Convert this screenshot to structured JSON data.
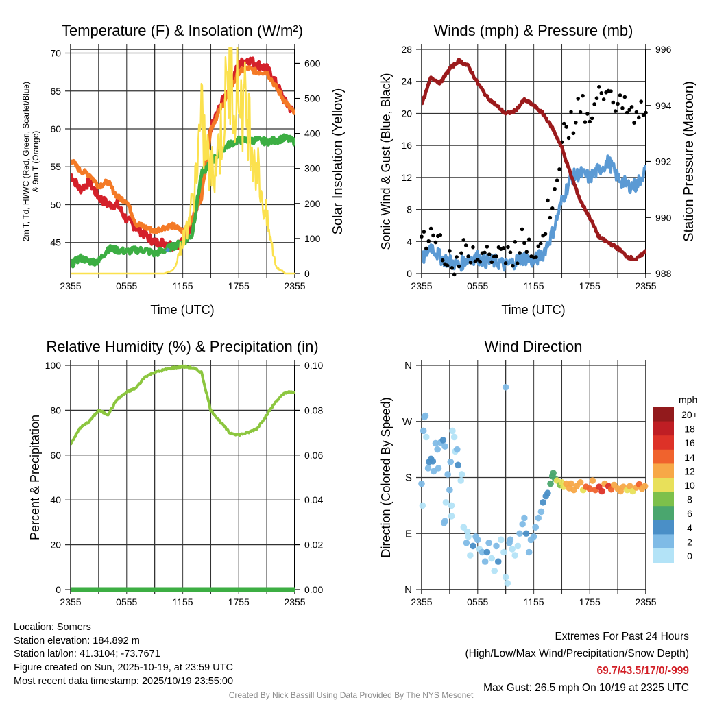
{
  "colors": {
    "temp": "#d4202a",
    "temp9m": "#f47a26",
    "dewpoint": "#3cae43",
    "windchill": "#4a90d0",
    "solar": "#fbe14e",
    "gust": "#000000",
    "wind": "#5b9ad4",
    "pressure": "#9b1a1c",
    "rh": "#8cc63f",
    "precip": "#3cae43"
  },
  "x_tick_labels": [
    "2355",
    "0555",
    "1155",
    "1755",
    "2355"
  ],
  "chart_data": [
    {
      "type": "line",
      "title": "Temperature (F) & Insolation (W/m²)",
      "xlabel": "Time (UTC)",
      "ylabel": [
        "2m T, Td, HI/WC (Red, Green, Scarlet/Blue)",
        "& 9m T (Orange)"
      ],
      "ylabel_right": "Solar Insolation (Yellow)",
      "x_hours_from_start": [
        0,
        1,
        2,
        3,
        4,
        5,
        6,
        7,
        8,
        9,
        10,
        11,
        12,
        13,
        14,
        15,
        16,
        17,
        18,
        19,
        20,
        21,
        22,
        23,
        24
      ],
      "ylim": [
        40.9,
        70.5
      ],
      "yticks": [
        45,
        50,
        55,
        60,
        65,
        70
      ],
      "ylim_right": [
        0,
        640
      ],
      "yticks_right": [
        0,
        100,
        200,
        300,
        400,
        500,
        600
      ],
      "series": [
        {
          "name": "2m T",
          "axis": "left",
          "color_key": "temp",
          "values": [
            54,
            52,
            53,
            51,
            50,
            50,
            48,
            47,
            46,
            45,
            45,
            44.6,
            45,
            47.5,
            52,
            60,
            63,
            65.5,
            68.5,
            69.2,
            68.5,
            68,
            66,
            63.5,
            62
          ]
        },
        {
          "name": "9m T",
          "axis": "left",
          "color_key": "temp9m",
          "values": [
            56,
            54.5,
            54,
            52.5,
            53,
            51,
            50.5,
            47.5,
            47,
            46.5,
            47,
            47.2,
            46.5,
            48,
            51,
            60,
            62.5,
            65,
            67.5,
            68,
            67.5,
            67.5,
            65.5,
            63.5,
            62
          ]
        },
        {
          "name": "Td",
          "axis": "left",
          "color_key": "dewpoint",
          "values": [
            42,
            43,
            42.5,
            42.5,
            44.2,
            44,
            43.8,
            44,
            44,
            43.5,
            44,
            44.5,
            45,
            46,
            54,
            55.5,
            57,
            58,
            58.5,
            58.5,
            58.5,
            58.3,
            58.5,
            58.8,
            58.3
          ]
        },
        {
          "name": "Solar Insolation",
          "axis": "right",
          "color_key": "solar",
          "values": [
            0,
            0,
            0,
            0,
            0,
            0,
            0,
            0,
            0,
            0,
            0,
            10,
            90,
            190,
            430,
            280,
            380,
            560,
            520,
            450,
            300,
            150,
            20,
            0,
            0
          ]
        }
      ],
      "windchill_points": [
        [
          10.3,
          43.8
        ],
        [
          10.5,
          44.2
        ]
      ]
    },
    {
      "type": "line",
      "title": "Winds (mph) & Pressure (mb)",
      "xlabel": "Time (UTC)",
      "ylabel": "Sonic Wind & Gust (Blue, Black)",
      "ylabel_right": "Station Pressure (Maroon)",
      "x_hours_from_start": [
        0,
        1,
        2,
        3,
        4,
        5,
        6,
        7,
        8,
        9,
        10,
        11,
        12,
        13,
        14,
        15,
        16,
        17,
        18,
        19,
        20,
        21,
        22,
        23,
        24
      ],
      "ylim": [
        0,
        28
      ],
      "yticks": [
        0,
        4,
        8,
        12,
        16,
        20,
        24,
        28
      ],
      "ylim_right": [
        988,
        996
      ],
      "yticks_right": [
        988,
        990,
        992,
        994,
        996
      ],
      "series": [
        {
          "name": "Sonic Wind",
          "axis": "left",
          "color_key": "wind",
          "values": [
            1.5,
            3.5,
            2,
            1.5,
            1,
            2,
            2,
            1.5,
            1.5,
            1,
            1.5,
            2,
            1.5,
            2.5,
            5,
            9,
            12,
            12.5,
            12,
            13,
            14,
            12,
            11,
            11,
            13
          ]
        },
        {
          "name": "Gust",
          "axis": "left",
          "style": "dots",
          "color_key": "gust",
          "values": [
            3,
            5,
            4,
            2,
            1.5,
            3,
            3,
            2.5,
            2,
            2,
            3,
            4,
            3.5,
            5,
            10,
            16,
            19,
            21,
            18,
            22,
            24,
            21,
            20,
            19,
            22
          ]
        },
        {
          "name": "Station Pressure",
          "axis": "right",
          "color_key": "pressure",
          "values": [
            994,
            995,
            994.8,
            995.3,
            995.6,
            995.4,
            994.8,
            994.3,
            994,
            993.7,
            993.8,
            994.2,
            994,
            993.7,
            993.2,
            992.5,
            991.5,
            990.6,
            990,
            989.3,
            989.1,
            988.9,
            988.6,
            988.5,
            988.8
          ]
        }
      ]
    },
    {
      "type": "line",
      "title": "Relative Humidity (%) & Precipitation (in)",
      "xlabel": "",
      "ylabel": "Percent & Precipitation",
      "x_hours_from_start": [
        0,
        1,
        2,
        3,
        4,
        5,
        6,
        7,
        8,
        9,
        10,
        11,
        12,
        13,
        14,
        15,
        16,
        17,
        18,
        19,
        20,
        21,
        22,
        23,
        24
      ],
      "ylim": [
        0,
        100
      ],
      "yticks": [
        0,
        20,
        40,
        60,
        80,
        100
      ],
      "ylim_right": [
        0,
        0.1
      ],
      "yticks_right": [
        "0.00",
        "0.02",
        "0.04",
        "0.06",
        "0.08",
        "0.10"
      ],
      "series": [
        {
          "name": "Relative Humidity",
          "axis": "left",
          "color_key": "rh",
          "values": [
            65,
            72,
            75,
            80,
            78,
            85,
            88,
            90,
            95,
            97,
            98,
            99,
            99.5,
            99,
            97,
            80,
            75,
            70,
            69,
            70,
            72,
            78,
            84,
            88,
            88
          ]
        },
        {
          "name": "Precipitation",
          "axis": "right",
          "color_key": "precip",
          "values": [
            0,
            0,
            0,
            0,
            0,
            0,
            0,
            0,
            0,
            0,
            0,
            0,
            0,
            0,
            0,
            0,
            0,
            0,
            0,
            0,
            0,
            0,
            0,
            0,
            0
          ]
        }
      ]
    },
    {
      "type": "scatter",
      "title": "Wind Direction",
      "xlabel": "",
      "ylabel": "Direction (Colored By Speed)",
      "ylim": [
        0,
        360
      ],
      "yticks": [
        0,
        90,
        180,
        270,
        360
      ],
      "ytick_labels": [
        "N",
        "E",
        "S",
        "W",
        "N"
      ],
      "legend": {
        "title": "mph",
        "labels": [
          "20+",
          "18",
          "16",
          "14",
          "12",
          "10",
          "8",
          "6",
          "4",
          "2",
          "0"
        ],
        "colors": [
          "#921a1c",
          "#bf1e24",
          "#dd3228",
          "#f0632d",
          "#f7a847",
          "#e8e05a",
          "#7dc04b",
          "#4aa66e",
          "#4a8fc7",
          "#7fbbe6",
          "#b3e3f7"
        ],
        "placement": "right"
      },
      "points_hour_deg_mph": [
        [
          0,
          170,
          2
        ],
        [
          0.1,
          135,
          1
        ],
        [
          0.2,
          255,
          2
        ],
        [
          0.3,
          277,
          2
        ],
        [
          0.4,
          279,
          2
        ],
        [
          0.5,
          245,
          1
        ],
        [
          0.7,
          195,
          3
        ],
        [
          0.8,
          205,
          4
        ],
        [
          1,
          210,
          4
        ],
        [
          1.2,
          206,
          4
        ],
        [
          1.3,
          190,
          3
        ],
        [
          1.5,
          235,
          2
        ],
        [
          1.7,
          225,
          2
        ],
        [
          1.8,
          195,
          2
        ],
        [
          2,
          236,
          2
        ],
        [
          2.3,
          240,
          4
        ],
        [
          2.8,
          185,
          2
        ],
        [
          3,
          160,
          2
        ],
        [
          3.2,
          135,
          1
        ],
        [
          2.5,
          230,
          2
        ],
        [
          2.6,
          140,
          1
        ],
        [
          2.5,
          110,
          2
        ],
        [
          2.4,
          107,
          2
        ],
        [
          3.1,
          205,
          2
        ],
        [
          3.3,
          255,
          0
        ],
        [
          3.5,
          245,
          0
        ],
        [
          3.6,
          222,
          1
        ],
        [
          3.8,
          225,
          2
        ],
        [
          3.9,
          200,
          4
        ],
        [
          4.2,
          175,
          0
        ],
        [
          4.3,
          185,
          1
        ],
        [
          3.2,
          118,
          1
        ],
        [
          4.5,
          100,
          0
        ],
        [
          4.8,
          75,
          2
        ],
        [
          4.9,
          93,
          0
        ],
        [
          5,
          85,
          0
        ],
        [
          5.2,
          55,
          0
        ],
        [
          5.5,
          70,
          4
        ],
        [
          5.8,
          85,
          2
        ],
        [
          6,
          80,
          3
        ],
        [
          6.2,
          65,
          0
        ],
        [
          6.5,
          60,
          3
        ],
        [
          6.8,
          45,
          3
        ],
        [
          7,
          60,
          4
        ],
        [
          7.2,
          75,
          2
        ],
        [
          7.5,
          50,
          0
        ],
        [
          7.8,
          30,
          0
        ],
        [
          8,
          70,
          3
        ],
        [
          8.2,
          45,
          4
        ],
        [
          8.5,
          80,
          1
        ],
        [
          8.8,
          60,
          0
        ],
        [
          9,
          20,
          0
        ],
        [
          9.2,
          10,
          0
        ],
        [
          9.4,
          75,
          3
        ],
        [
          9,
          325,
          2
        ],
        [
          9.5,
          80,
          3
        ],
        [
          9.7,
          65,
          1
        ],
        [
          10,
          55,
          0
        ],
        [
          10.3,
          70,
          1
        ],
        [
          10.5,
          90,
          3
        ],
        [
          10.8,
          105,
          3
        ],
        [
          11,
          115,
          2
        ],
        [
          11.2,
          90,
          4
        ],
        [
          11.5,
          60,
          3
        ],
        [
          11.7,
          80,
          3
        ],
        [
          12,
          85,
          3
        ],
        [
          12.2,
          100,
          3
        ],
        [
          12.5,
          115,
          2
        ],
        [
          12.8,
          125,
          2
        ],
        [
          13,
          140,
          4
        ],
        [
          13.3,
          150,
          5
        ],
        [
          13.5,
          155,
          4
        ],
        [
          13.8,
          170,
          6
        ],
        [
          14,
          182,
          6
        ],
        [
          14.1,
          187,
          6
        ],
        [
          14.3,
          178,
          7
        ],
        [
          14.5,
          175,
          10
        ],
        [
          14.8,
          168,
          8
        ],
        [
          15,
          172,
          10
        ],
        [
          15.2,
          165,
          11
        ],
        [
          15.5,
          170,
          12
        ],
        [
          15.8,
          163,
          13
        ],
        [
          16,
          170,
          12
        ],
        [
          16.3,
          160,
          12
        ],
        [
          16.6,
          166,
          13
        ],
        [
          17,
          172,
          12
        ],
        [
          17.3,
          160,
          11
        ],
        [
          17.6,
          165,
          15
        ],
        [
          18,
          162,
          14
        ],
        [
          18.3,
          175,
          12
        ],
        [
          18.6,
          160,
          15
        ],
        [
          19,
          165,
          16
        ],
        [
          19.3,
          158,
          16
        ],
        [
          19.6,
          170,
          13
        ],
        [
          20,
          166,
          17
        ],
        [
          20.3,
          161,
          15
        ],
        [
          20.6,
          168,
          12
        ],
        [
          21,
          162,
          12
        ],
        [
          21.3,
          158,
          13
        ],
        [
          21.6,
          165,
          12
        ],
        [
          22,
          160,
          11
        ],
        [
          22.3,
          166,
          12
        ],
        [
          22.6,
          158,
          10
        ],
        [
          23,
          164,
          13
        ],
        [
          23.3,
          169,
          14
        ],
        [
          23.6,
          162,
          12
        ],
        [
          23.9,
          166,
          12
        ]
      ]
    }
  ],
  "footer_left": [
    "Location: Somers",
    "Station elevation: 184.892 m",
    "Station lat/lon: 41.3104; -73.7671",
    "Figure created on Sun, 2025-10-19, at 23:59 UTC",
    "Most recent data timestamp: 2025/10/19 23:55:00"
  ],
  "footer_right": {
    "heading": "Extremes For Past 24 Hours",
    "subheading": "(High/Low/Max Wind/Precipitation/Snow Depth)",
    "values": "69.7/43.5/17/0/-999",
    "max_gust": "Max Gust: 26.5 mph On 10/19 at 2325 UTC"
  },
  "credit": "Created By Nick Bassill Using Data Provided By The NYS Mesonet"
}
